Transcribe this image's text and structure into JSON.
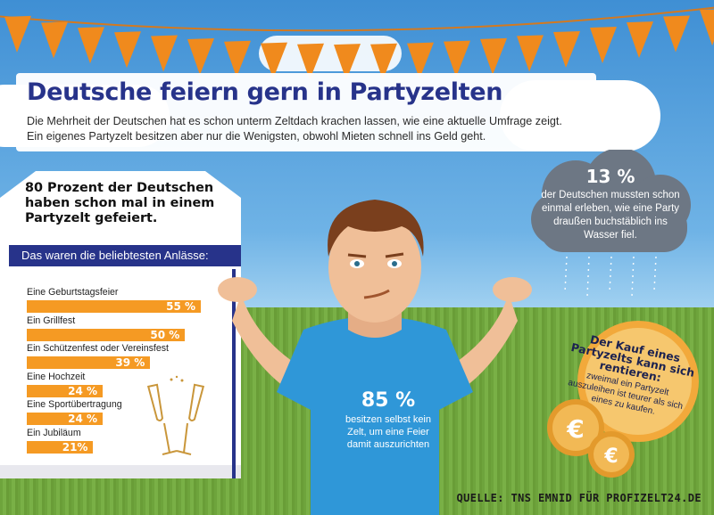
{
  "header": {
    "title": "Deutsche feiern gern in Partyzelten",
    "intro_line1": "Die Mehrheit der Deutschen hat es schon unterm Zeltdach krachen lassen, wie eine aktuelle Umfrage zeigt.",
    "intro_line2": "Ein eigenes Partyzelt besitzen aber nur die Wenigsten, obwohl Mieten schnell ins Geld geht."
  },
  "left_panel": {
    "headline": "80 Prozent der Deutschen haben schon mal in einem Partyzelt gefeiert.",
    "subheader": "Das waren die beliebtesten Anlässe:"
  },
  "chart_data": {
    "type": "bar",
    "orientation": "horizontal",
    "categories": [
      "Eine Geburtstagsfeier",
      "Ein Grillfest",
      "Ein Schützenfest oder Vereinsfest",
      "Eine Hochzeit",
      "Eine Sportübertragung",
      "Ein Jubiläum"
    ],
    "values": [
      55,
      50,
      39,
      24,
      24,
      21
    ],
    "value_labels": [
      "55 %",
      "50 %",
      "39 %",
      "24 %",
      "24 %",
      "21%"
    ],
    "unit": "%",
    "xlim": [
      0,
      55
    ],
    "grid": false,
    "bar_color": "#f59a23"
  },
  "cloud_stat": {
    "value": "13 %",
    "text": "der Deutschen mussten schon einmal erleben, wie eine Party draußen buchstäblich ins Wasser fiel."
  },
  "shirt_stat": {
    "value": "85 %",
    "text": "besitzen selbst kein Zelt, um eine Feier damit auszurichten"
  },
  "coin_stat": {
    "headline": "Der Kauf eines Partyzelts kann sich rentieren:",
    "text": "zweimal ein Partyzelt auszuleihen ist teurer als sich eines zu kaufen."
  },
  "source": "QUELLE: TNS EMNID FÜR PROFIZELT24.DE",
  "colors": {
    "title_blue": "#27338a",
    "orange": "#f59a23",
    "shirt_blue": "#2f97d8",
    "grass": "#6ea43c",
    "rain_cloud": "#6d7784",
    "coin": "#f2a93b"
  }
}
